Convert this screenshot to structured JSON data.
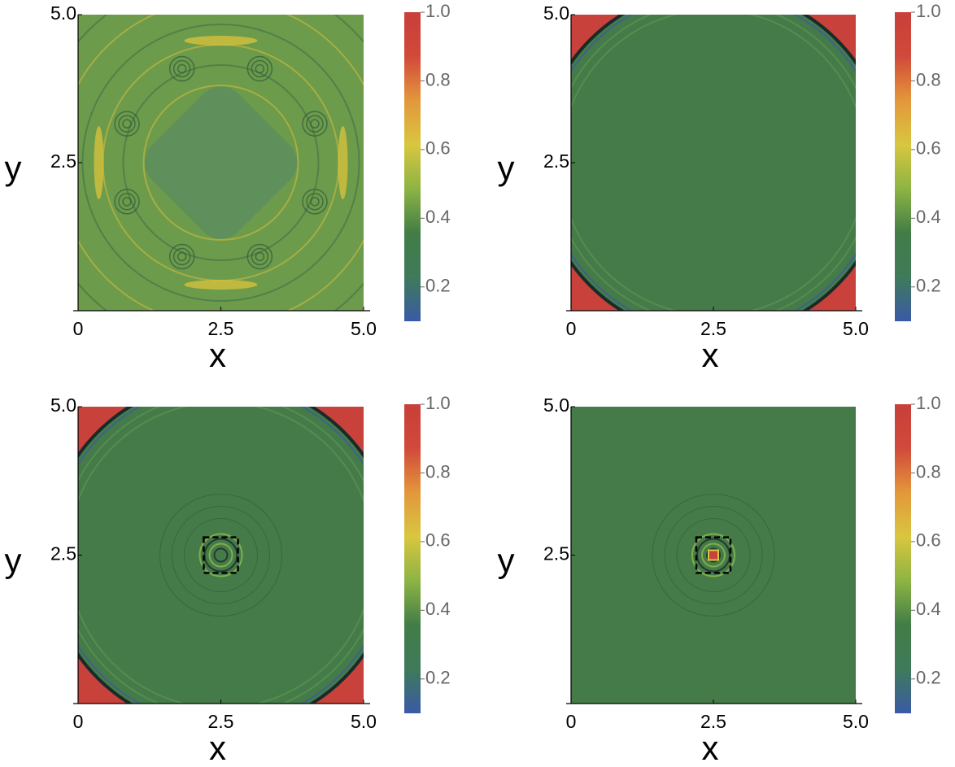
{
  "chart_data": [
    {
      "type": "density",
      "xlabel": "x",
      "ylabel": "y",
      "xlim": [
        0,
        5
      ],
      "ylim": [
        0,
        5
      ],
      "xticks": [
        0,
        2.5,
        {
          "value": 5,
          "label": "5.0"
        }
      ],
      "yticks": [
        2.5,
        {
          "value": 5,
          "label": "5.0"
        }
      ],
      "clim": [
        0.1,
        1.0
      ],
      "colorbar_ticks": [
        0.2,
        0.4,
        0.6,
        0.8,
        {
          "value": 1,
          "label": "1.0"
        }
      ],
      "colormap": [
        "#3a5aa6",
        "#3f7a5a",
        "#427d47",
        "#8db443",
        "#d8c63f",
        "#e3973b",
        "#d1493a",
        "#c83f3a"
      ]
    },
    {
      "type": "density",
      "xlabel": "x",
      "ylabel": "y",
      "xlim": [
        0,
        5
      ],
      "ylim": [
        0,
        5
      ],
      "xticks": [
        0,
        2.5,
        {
          "value": 5,
          "label": "5.0"
        }
      ],
      "yticks": [
        2.5,
        {
          "value": 5,
          "label": "5.0"
        }
      ],
      "clim": [
        0.1,
        1.0
      ],
      "colorbar_ticks": [
        0.2,
        0.4,
        0.6,
        0.8,
        {
          "value": 1,
          "label": "1.0"
        }
      ],
      "colormap": [
        "#3a5aa6",
        "#3f7a5a",
        "#427d47",
        "#8db443",
        "#d8c63f",
        "#e3973b",
        "#d1493a",
        "#c83f3a"
      ]
    },
    {
      "type": "density",
      "xlabel": "x",
      "ylabel": "y",
      "xlim": [
        0,
        5
      ],
      "ylim": [
        0,
        5
      ],
      "xticks": [
        0,
        2.5,
        {
          "value": 5,
          "label": "5.0"
        }
      ],
      "yticks": [
        2.5,
        {
          "value": 5,
          "label": "5.0"
        }
      ],
      "clim": [
        0.1,
        1.0
      ],
      "colorbar_ticks": [
        0.2,
        0.4,
        0.6,
        0.8,
        {
          "value": 1,
          "label": "1.0"
        }
      ],
      "colormap": [
        "#3a5aa6",
        "#3f7a5a",
        "#427d47",
        "#8db443",
        "#d8c63f",
        "#e3973b",
        "#d1493a",
        "#c83f3a"
      ],
      "highlight_xlim": [
        2.2,
        2.8
      ],
      "highlight_ylim": [
        2.2,
        2.8
      ]
    },
    {
      "type": "density",
      "xlabel": "x",
      "ylabel": "y",
      "xlim": [
        0,
        5
      ],
      "ylim": [
        0,
        5
      ],
      "xticks": [
        0,
        2.5,
        {
          "value": 5,
          "label": "5.0"
        }
      ],
      "yticks": [
        2.5,
        {
          "value": 5,
          "label": "5.0"
        }
      ],
      "clim": [
        0.1,
        1.0
      ],
      "colorbar_ticks": [
        0.2,
        0.4,
        0.6,
        0.8,
        {
          "value": 1,
          "label": "1.0"
        }
      ],
      "colormap": [
        "#3a5aa6",
        "#3f7a5a",
        "#427d47",
        "#8db443",
        "#d8c63f",
        "#e3973b",
        "#d1493a",
        "#c83f3a"
      ],
      "highlight_xlim": [
        2.2,
        2.8
      ],
      "highlight_ylim": [
        2.2,
        2.8
      ]
    }
  ]
}
